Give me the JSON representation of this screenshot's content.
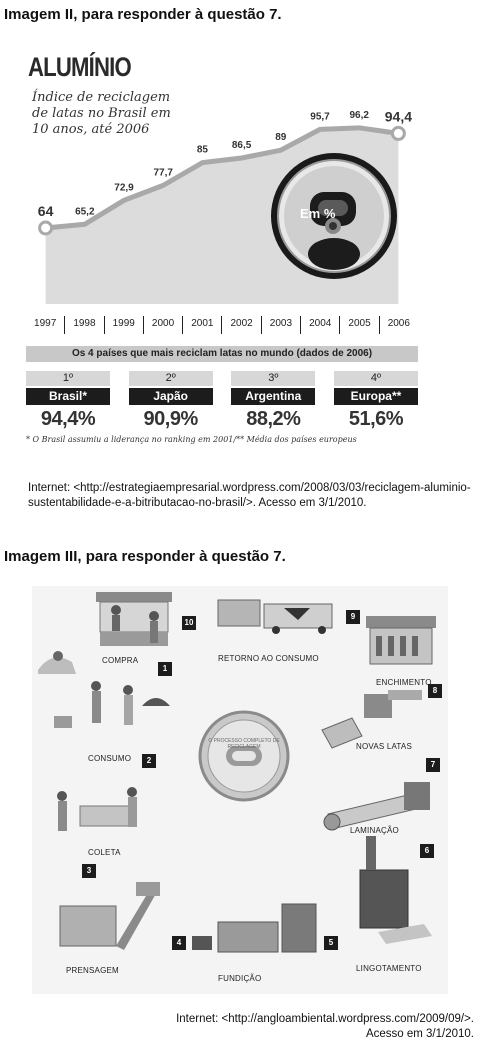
{
  "headings": {
    "image2": "Imagem II, para responder à questão 7.",
    "image3": "Imagem III, para responder à questão 7."
  },
  "chart_data": {
    "type": "line",
    "title": "ALUMÍNIO",
    "subtitle": "Índice de reciclagem de latas no Brasil em 10 anos, até 2006",
    "x": [
      "1997",
      "1998",
      "1999",
      "2000",
      "2001",
      "2002",
      "2003",
      "2004",
      "2005",
      "2006"
    ],
    "values": [
      64,
      65.2,
      72.9,
      77.7,
      85,
      86.5,
      89,
      95.7,
      96.2,
      94.4
    ],
    "value_labels": [
      "64",
      "65,2",
      "72,9",
      "77,7",
      "85",
      "86,5",
      "89",
      "95,7",
      "96,2",
      "94,4"
    ],
    "badge": "Em %",
    "ylim": [
      55,
      100
    ],
    "grid": false,
    "colors": {
      "area": "#dcdcdc",
      "line": "#a9a9a9",
      "marker_fill": "#ffffff"
    }
  },
  "ranking": {
    "header": "Os 4 países que mais reciclam latas no mundo (dados de 2006)",
    "items": [
      {
        "position": "1º",
        "country": "Brasil*",
        "value": "94,4%"
      },
      {
        "position": "2º",
        "country": "Japão",
        "value": "90,9%"
      },
      {
        "position": "3º",
        "country": "Argentina",
        "value": "88,2%"
      },
      {
        "position": "4º",
        "country": "Europa**",
        "value": "51,6%"
      }
    ],
    "note": "* O Brasil assumiu a liderança no ranking em 2001/** Média dos países europeus"
  },
  "sources": {
    "image2": "Internet: <http://estrategiaempresarial.wordpress.com/2008/03/03/reciclagem-aluminio-sustentabilidade-e-a-bitributacao-no-brasil/>. Acesso em 3/1/2010.",
    "image3_line1": "Internet: <http://angloambiental.wordpress.com/2009/09/>.",
    "image3_line2": "Acesso em 3/1/2010."
  },
  "cycle": {
    "stages": {
      "compra": "COMPRA",
      "consumo": "CONSUMO",
      "coleta": "COLETA",
      "prensagem": "PRENSAGEM",
      "fundicao": "FUNDIÇÃO",
      "lingotamento": "LINGOTAMENTO",
      "laminacao": "LAMINAÇÃO",
      "novas_latas": "NOVAS LATAS",
      "enchimento": "ENCHIMENTO",
      "retorno": "RETORNO AO CONSUMO"
    },
    "steps": [
      "1",
      "2",
      "3",
      "4",
      "5",
      "6",
      "7",
      "8",
      "9",
      "10"
    ],
    "coin_text": "O PROCESSO COMPLETO DE RECICLAGEM"
  }
}
